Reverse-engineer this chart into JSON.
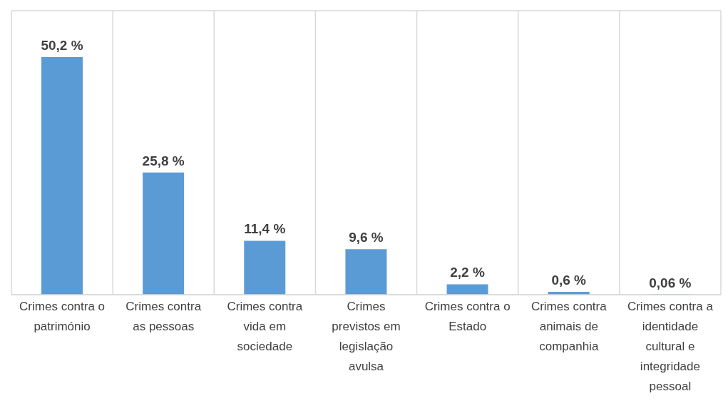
{
  "chart_data": {
    "type": "bar",
    "categories": [
      "Crimes contra o património",
      "Crimes contra as pessoas",
      "Crimes contra vida em sociedade",
      "Crimes previstos em legislação avulsa",
      "Crimes contra o Estado",
      "Crimes contra animais de companhia",
      "Crimes contra a identidade cultural e integridade pessoal"
    ],
    "values": [
      50.2,
      25.8,
      11.4,
      9.6,
      2.2,
      0.6,
      0.06
    ],
    "value_labels": [
      "50,2 %",
      "25,8 %",
      "11,4 %",
      "9,6 %",
      "2,2 %",
      "0,6 %",
      "0,06 %"
    ],
    "color": "#5b9bd5",
    "ylim": [
      0,
      60
    ],
    "grid": true,
    "tick_labels": "x"
  }
}
